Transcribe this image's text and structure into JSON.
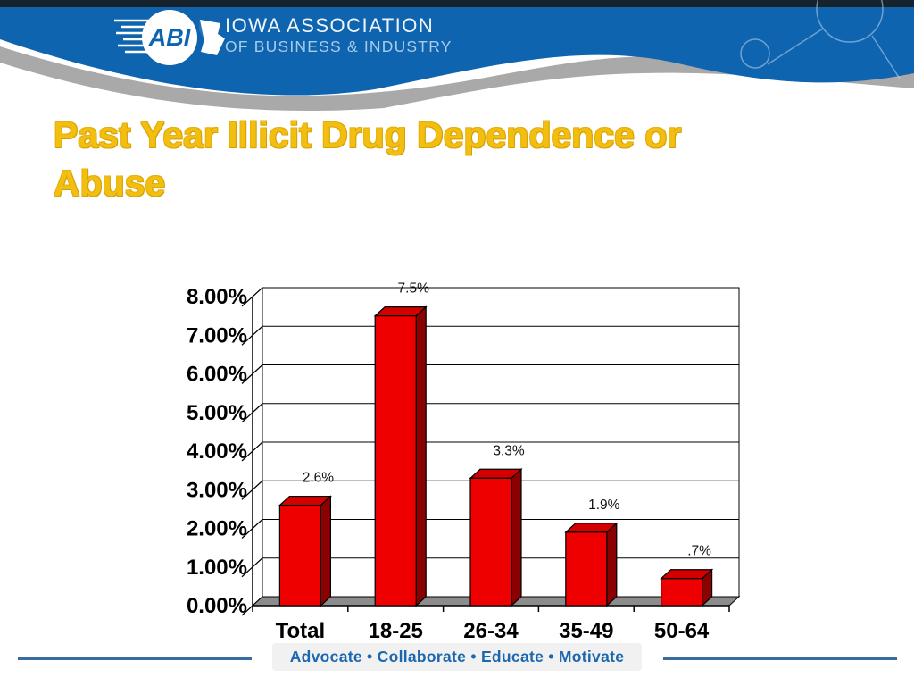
{
  "header": {
    "logo_abbr": "ABI",
    "org_line1": "IOWA ASSOCIATION",
    "org_line2": "OF BUSINESS & INDUSTRY",
    "colors": {
      "top_strip": "#16222c",
      "band_blue": "#0f64af",
      "band_gray": "#a9a9a9"
    }
  },
  "title": {
    "text": "Past Year Illicit Drug Dependence or Abuse",
    "color": "#f2bf11"
  },
  "chart_data": {
    "type": "bar",
    "title": "",
    "xlabel": "",
    "ylabel": "",
    "categories": [
      "Total",
      "18-25",
      "26-34",
      "35-49",
      "50-64"
    ],
    "values": [
      2.6,
      7.5,
      3.3,
      1.9,
      0.7
    ],
    "data_labels": [
      "2.6%",
      "7.5%",
      "3.3%",
      "1.9%",
      ".7%"
    ],
    "y_ticks": [
      "8.00%",
      "7.00%",
      "6.00%",
      "5.00%",
      "4.00%",
      "3.00%",
      "2.00%",
      "1.00%",
      "0.00%"
    ],
    "ylim": [
      0,
      8
    ],
    "grid": true,
    "legend": false,
    "style_3d": true,
    "colors": {
      "bar_front": "#ee0000",
      "bar_side": "#8b0000",
      "bar_top": "#d40000",
      "floor": "#8c8c8c",
      "grid_line": "#000000",
      "label_text": "#111111"
    }
  },
  "footer": {
    "tagline": "Advocate  •  Collaborate  •  Educate  •  Motivate",
    "words": [
      "Advocate",
      "Collaborate",
      "Educate",
      "Motivate"
    ],
    "separator": "•"
  }
}
